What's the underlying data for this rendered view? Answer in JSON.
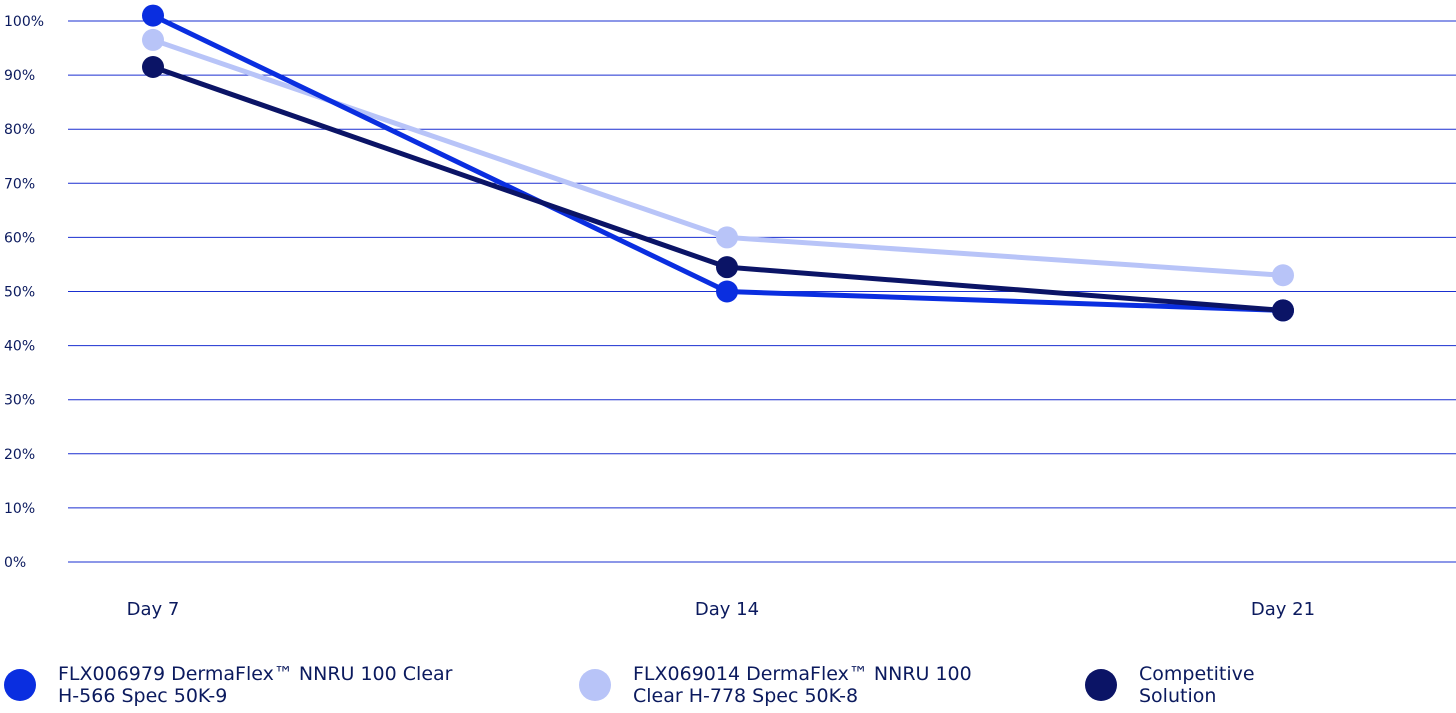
{
  "chart_data": {
    "type": "line",
    "categories": [
      "Day 7",
      "Day 14",
      "Day 21"
    ],
    "ylim": [
      0,
      100
    ],
    "yticks": [
      0,
      10,
      20,
      30,
      40,
      50,
      60,
      70,
      80,
      90,
      100
    ],
    "ytick_labels": [
      "0%",
      "10%",
      "20%",
      "30%",
      "40%",
      "50%",
      "60%",
      "70%",
      "80%",
      "90%",
      "100%"
    ],
    "grid": true,
    "legend_position": "bottom",
    "series": [
      {
        "name": "FLX006979 DermaFlex™ NNRU 100 Clear\nH-566 Spec 50K-9",
        "color": "#0a2ee0",
        "values": [
          101,
          50,
          46.5
        ]
      },
      {
        "name": "FLX069014 DermaFlex™ NNRU 100\nClear H-778 Spec 50K-8",
        "color": "#b8c4f8",
        "values": [
          96.5,
          60,
          53
        ]
      },
      {
        "name": "Competitive\nSolution",
        "color": "#0b1466",
        "values": [
          91.5,
          54.5,
          46.5
        ]
      }
    ]
  }
}
